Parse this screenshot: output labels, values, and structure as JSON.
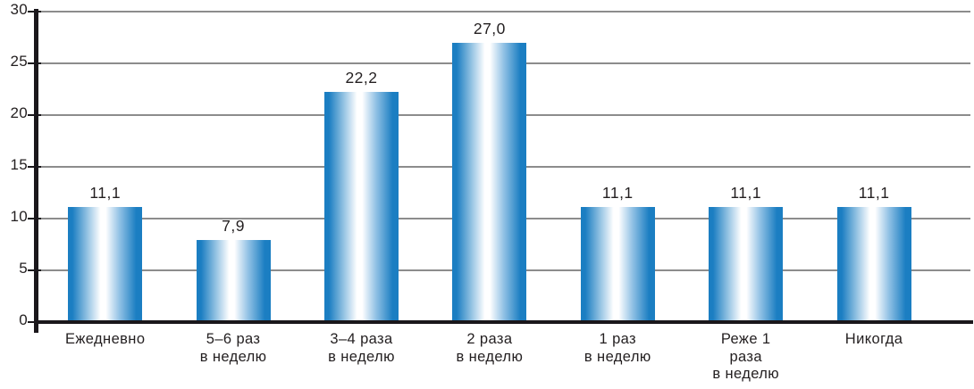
{
  "chart_data": {
    "type": "bar",
    "title": "",
    "xlabel": "",
    "ylabel": "",
    "categories": [
      "Ежедневно",
      "5–6 раз в неделю",
      "3–4 раза в неделю",
      "2 раза в неделю",
      "1 раз в неделю",
      "Реже 1 раза в неделю",
      "Никогда"
    ],
    "category_lines": [
      [
        "Ежедневно"
      ],
      [
        "5–6 раз",
        "в неделю"
      ],
      [
        "3–4 раза",
        "в неделю"
      ],
      [
        "2 раза",
        "в неделю"
      ],
      [
        "1 раз",
        "в неделю"
      ],
      [
        "Реже 1",
        "раза",
        "в неделю"
      ],
      [
        "Никогда"
      ]
    ],
    "values": [
      11.1,
      7.9,
      22.2,
      27.0,
      11.1,
      11.1,
      11.1
    ],
    "value_labels": [
      "11,1",
      "7,9",
      "22,2",
      "27,0",
      "11,1",
      "11,1",
      "11,1"
    ],
    "ylim": [
      0,
      30
    ],
    "y_ticks": [
      0,
      5,
      10,
      15,
      20,
      25,
      30
    ],
    "y_tick_labels": [
      "0",
      "5",
      "10",
      "15",
      "20",
      "25",
      "30"
    ],
    "grid": true,
    "legend_position": "none",
    "decimal_separator": ",",
    "colors": {
      "bar_blue": "#1b7ec2",
      "bar_mid_blue": "#8fc0e4",
      "bar_highlight": "#ffffff",
      "axis_black": "#1a171b",
      "gridline_gray": "#8c8c8c",
      "label_text": "#231f20"
    }
  }
}
